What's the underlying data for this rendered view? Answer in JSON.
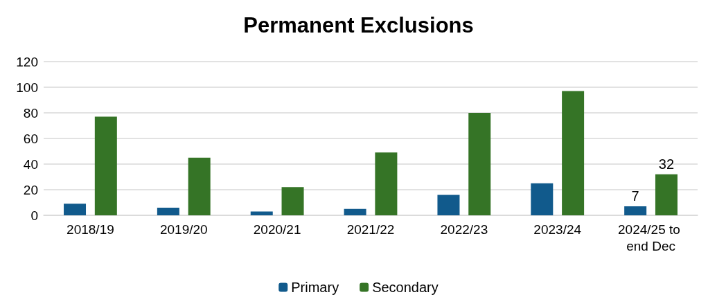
{
  "chart_data": {
    "type": "bar",
    "title": "Permanent Exclusions",
    "categories": [
      "2018/19",
      "2019/20",
      "2020/21",
      "2021/22",
      "2022/23",
      "2023/24",
      "2024/25 to end Dec"
    ],
    "series": [
      {
        "name": "Primary",
        "color": "#115a8c",
        "values": [
          9,
          6,
          3,
          5,
          16,
          25,
          7
        ],
        "value_labels": [
          null,
          null,
          null,
          null,
          null,
          null,
          "7"
        ]
      },
      {
        "name": "Secondary",
        "color": "#357426",
        "values": [
          77,
          45,
          22,
          49,
          80,
          97,
          32
        ],
        "value_labels": [
          null,
          null,
          null,
          null,
          null,
          null,
          "32"
        ]
      }
    ],
    "ylim": [
      0,
      120
    ],
    "yticks": [
      0,
      20,
      40,
      60,
      80,
      100,
      120
    ],
    "grid": "y",
    "legend": "bottom"
  }
}
